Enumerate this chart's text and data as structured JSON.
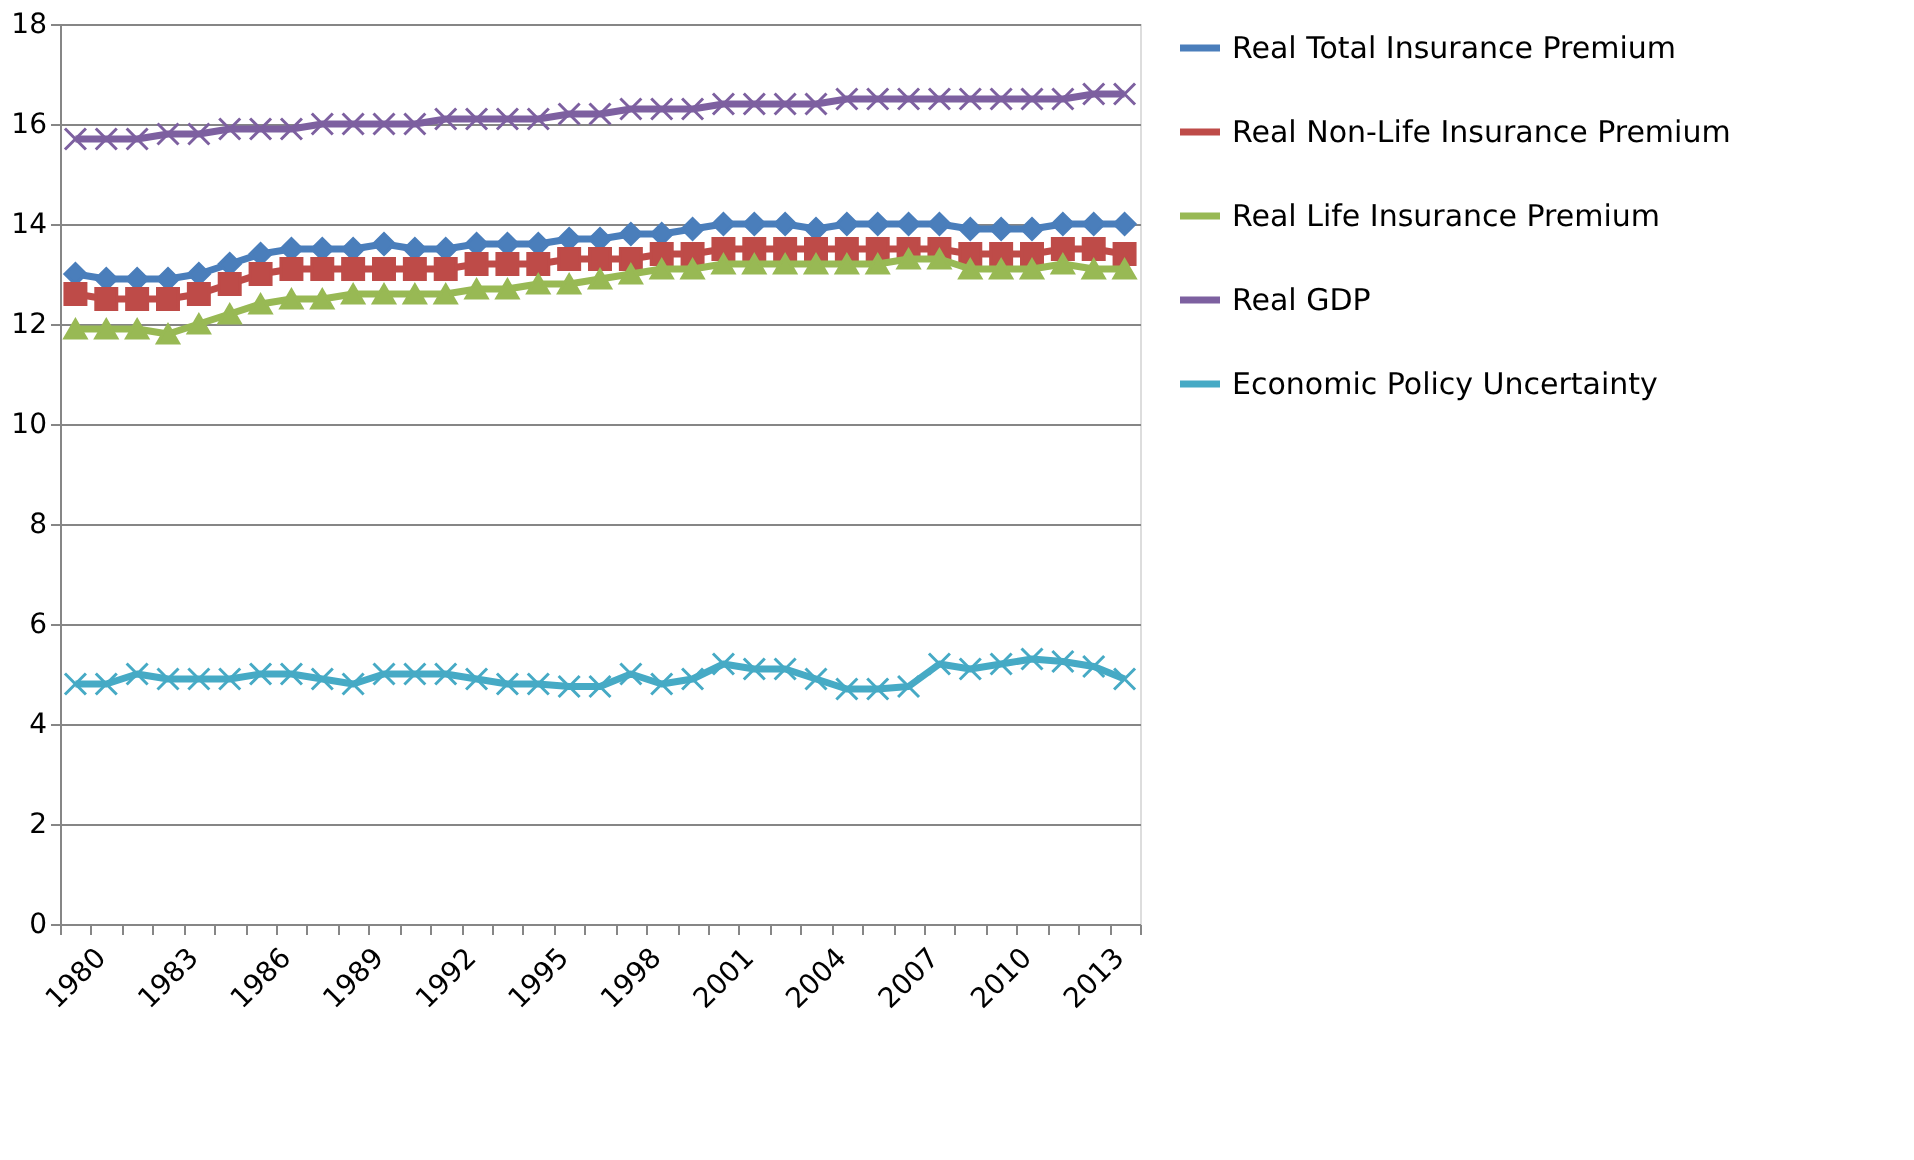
{
  "chart_data": {
    "type": "line",
    "categories": [
      "1980",
      null,
      null,
      "1983",
      null,
      null,
      "1986",
      null,
      null,
      "1989",
      null,
      null,
      "1992",
      null,
      null,
      "1995",
      null,
      null,
      "1998",
      null,
      null,
      "2001",
      null,
      null,
      "2004",
      null,
      null,
      "2007",
      null,
      null,
      "2010",
      null,
      null,
      "2013",
      null
    ],
    "series": [
      {
        "name": "Real Total Insurance Premium",
        "color": "#4a7ebb",
        "marker": "diamond",
        "values": [
          13.0,
          12.9,
          12.9,
          12.9,
          13.0,
          13.2,
          13.4,
          13.5,
          13.5,
          13.5,
          13.6,
          13.5,
          13.5,
          13.6,
          13.6,
          13.6,
          13.7,
          13.7,
          13.8,
          13.8,
          13.9,
          14.0,
          14.0,
          14.0,
          13.9,
          14.0,
          14.0,
          14.0,
          14.0,
          13.9,
          13.9,
          13.9,
          14.0,
          14.0,
          14.0
        ]
      },
      {
        "name": "Real Non-Life Insurance Premium",
        "color": "#be4b48",
        "marker": "square",
        "values": [
          12.6,
          12.5,
          12.5,
          12.5,
          12.6,
          12.8,
          13.0,
          13.1,
          13.1,
          13.1,
          13.1,
          13.1,
          13.1,
          13.2,
          13.2,
          13.2,
          13.3,
          13.3,
          13.3,
          13.4,
          13.4,
          13.5,
          13.5,
          13.5,
          13.5,
          13.5,
          13.5,
          13.5,
          13.5,
          13.4,
          13.4,
          13.4,
          13.5,
          13.5,
          13.4
        ]
      },
      {
        "name": "Real Life Insurance Premium",
        "color": "#98b954",
        "marker": "triangle",
        "values": [
          11.9,
          11.9,
          11.9,
          11.8,
          12.0,
          12.2,
          12.4,
          12.5,
          12.5,
          12.6,
          12.6,
          12.6,
          12.6,
          12.7,
          12.7,
          12.8,
          12.8,
          12.9,
          13.0,
          13.1,
          13.1,
          13.2,
          13.2,
          13.2,
          13.2,
          13.2,
          13.2,
          13.3,
          13.3,
          13.1,
          13.1,
          13.1,
          13.2,
          13.1,
          13.1
        ]
      },
      {
        "name": "Real GDP",
        "color": "#7d60a0",
        "marker": "cross",
        "values": [
          15.7,
          15.7,
          15.7,
          15.8,
          15.8,
          15.9,
          15.9,
          15.9,
          16.0,
          16.0,
          16.0,
          16.0,
          16.1,
          16.1,
          16.1,
          16.1,
          16.2,
          16.2,
          16.3,
          16.3,
          16.3,
          16.4,
          16.4,
          16.4,
          16.4,
          16.5,
          16.5,
          16.5,
          16.5,
          16.5,
          16.5,
          16.5,
          16.5,
          16.6,
          16.6
        ]
      },
      {
        "name": "Economic Policy Uncertainty",
        "color": "#46aac5",
        "marker": "cross",
        "values": [
          4.8,
          4.8,
          5.0,
          4.9,
          4.9,
          4.9,
          5.0,
          5.0,
          4.9,
          4.8,
          5.0,
          5.0,
          5.0,
          4.9,
          4.8,
          4.8,
          4.75,
          4.75,
          5.0,
          4.8,
          4.9,
          5.2,
          5.1,
          5.1,
          4.9,
          4.7,
          4.7,
          4.75,
          5.2,
          5.1,
          5.2,
          5.3,
          5.25,
          5.15,
          4.9
        ]
      }
    ],
    "ylim": [
      0,
      18
    ],
    "yticks": [
      0,
      2,
      4,
      6,
      8,
      10,
      12,
      14,
      16,
      18
    ],
    "grid": "y",
    "legend": "right",
    "line_style": "solid"
  }
}
